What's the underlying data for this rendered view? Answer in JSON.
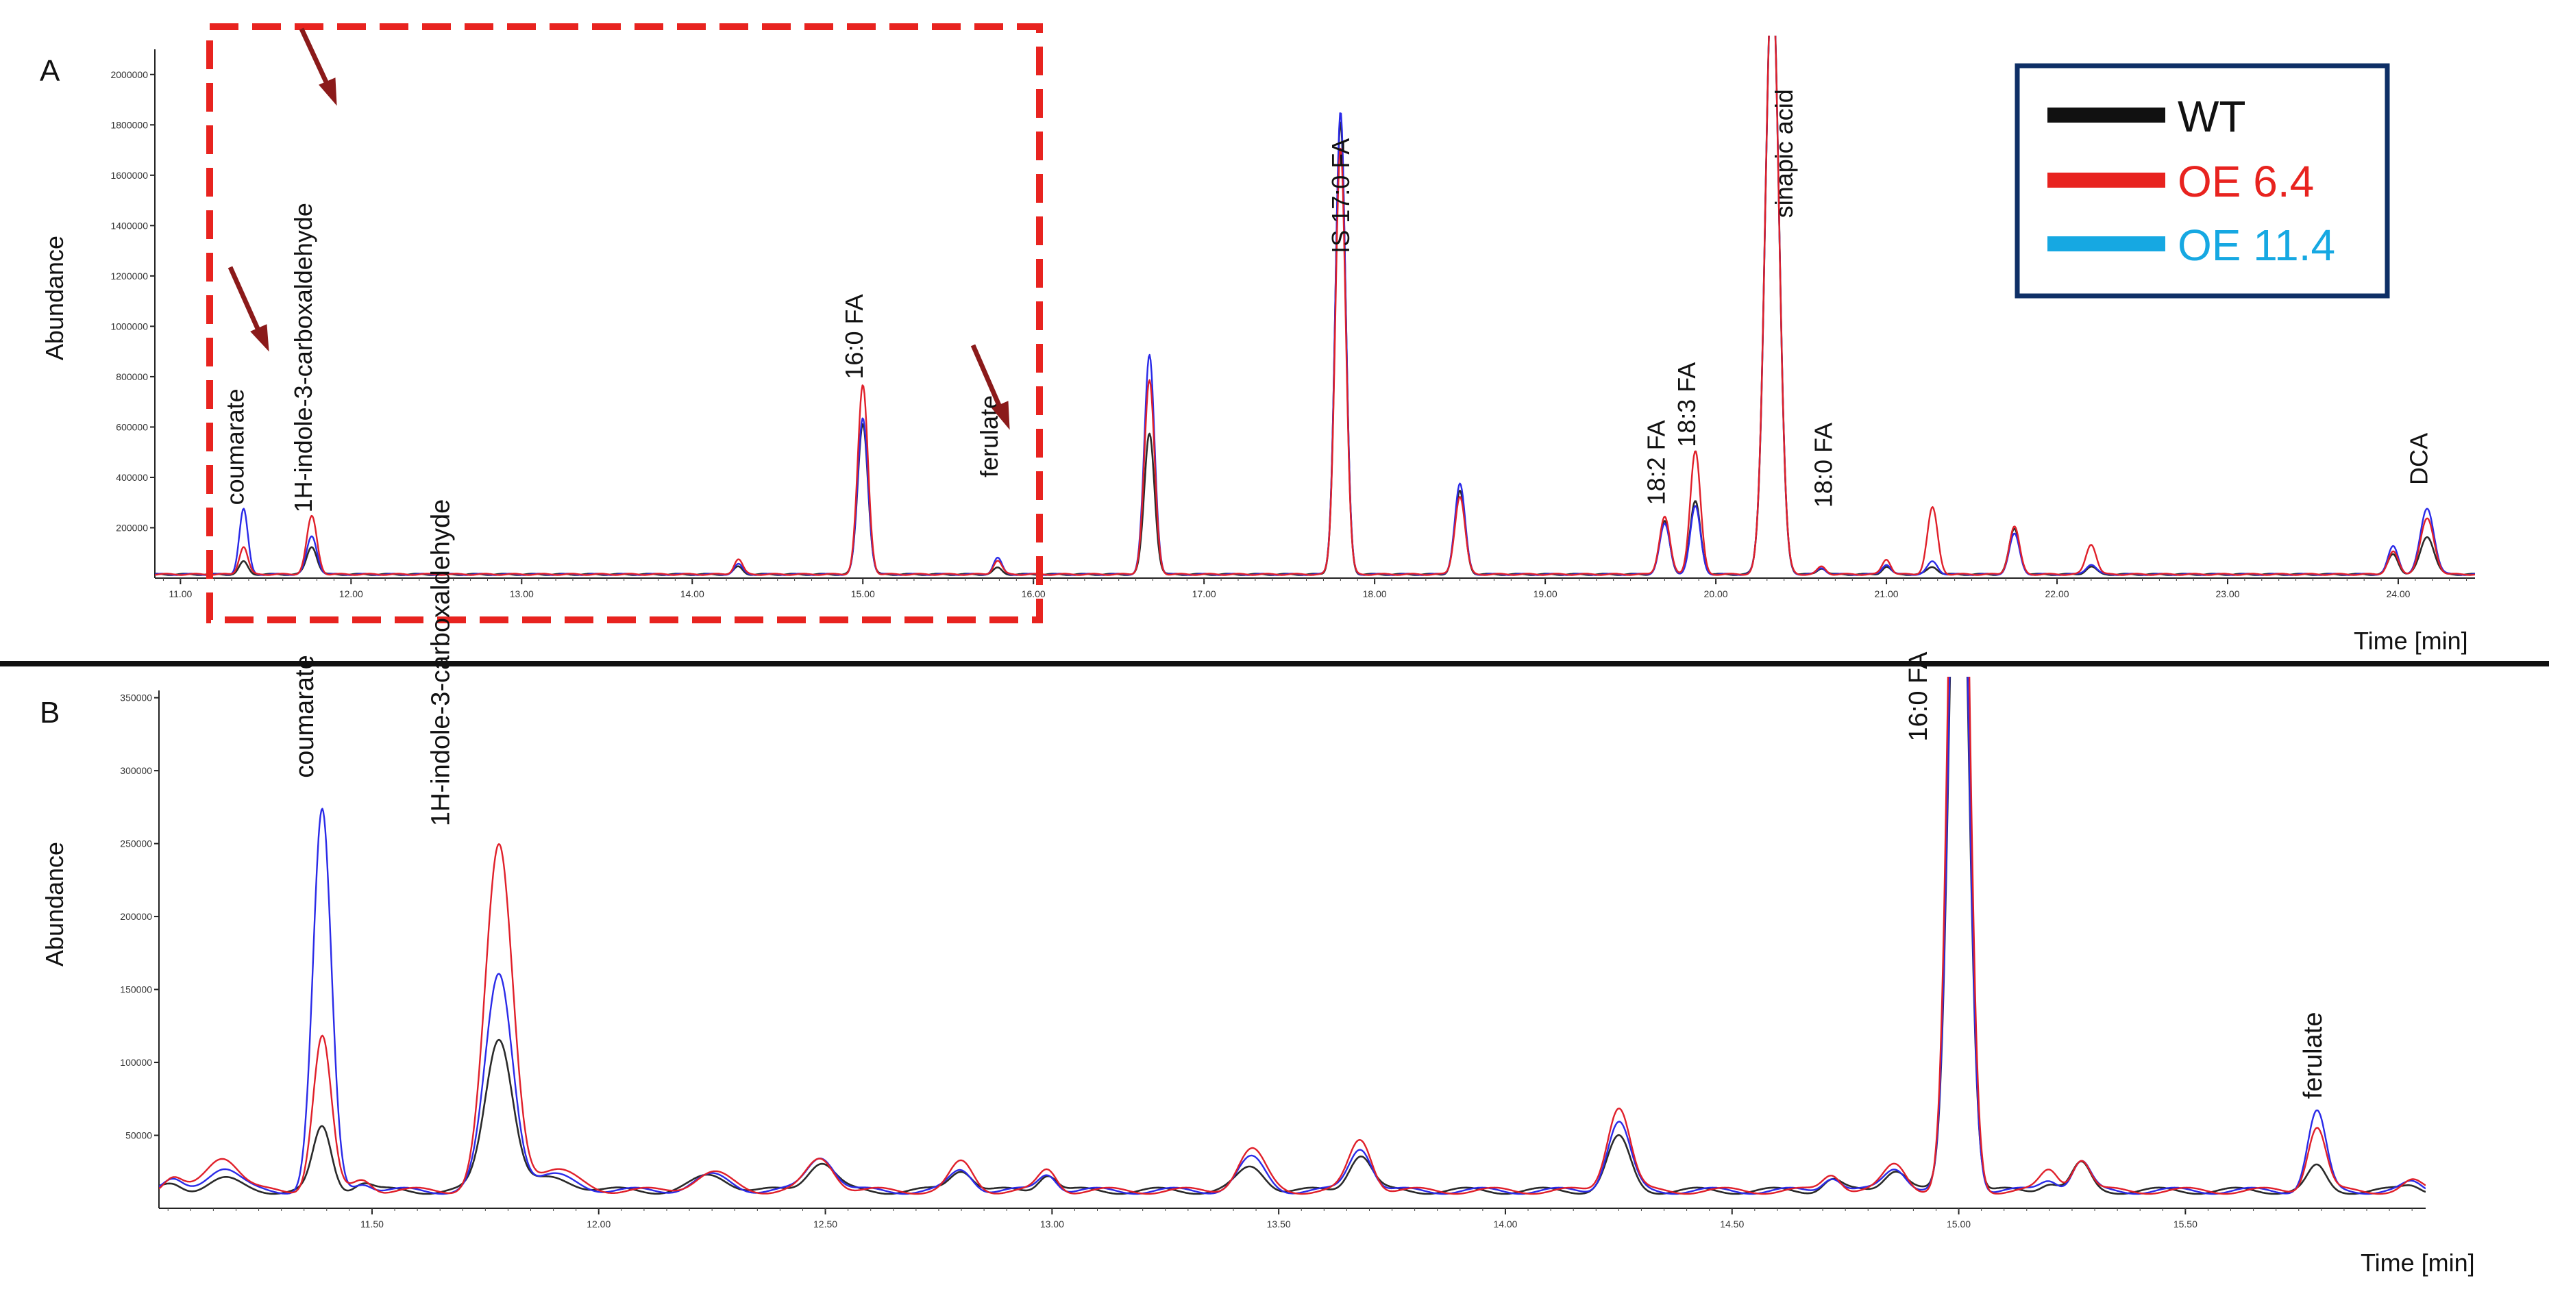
{
  "colors": {
    "WT": "#2a2a2a",
    "OE 6.4": "#e0202a",
    "OE 11.4": "#2a2ae8",
    "legend_OE 11.4": "#16a8e2",
    "box": "#e8231f",
    "arrow": "#8b1a1a",
    "legend_border": "#0e2f66"
  },
  "legend": [
    {
      "name": "WT",
      "color": "#111111"
    },
    {
      "name": "OE 6.4",
      "color": "#e8231f"
    },
    {
      "name": "OE 11.4",
      "color": "#16a8e2"
    }
  ],
  "chart_data": [
    {
      "panel_label": "A",
      "type": "line",
      "xlabel": "Time [min]",
      "ylabel": "Abundance",
      "xlim": [
        10.85,
        24.45
      ],
      "ylim": [
        0,
        2100000
      ],
      "x_ticks": [
        "11.00",
        "12.00",
        "13.00",
        "14.00",
        "15.00",
        "16.00",
        "17.00",
        "18.00",
        "19.00",
        "20.00",
        "21.00",
        "22.00",
        "23.00",
        "24.00"
      ],
      "x_tick_values": [
        11,
        12,
        13,
        14,
        15,
        16,
        17,
        18,
        19,
        20,
        21,
        22,
        23,
        24
      ],
      "y_ticks": [
        "200000",
        "400000",
        "600000",
        "800000",
        "1000000",
        "1200000",
        "1400000",
        "1600000",
        "1800000",
        "2000000"
      ],
      "y_tick_values": [
        200000,
        400000,
        600000,
        800000,
        1000000,
        1200000,
        1400000,
        1600000,
        1800000,
        2000000
      ],
      "grid": false,
      "baseline": 15000,
      "peaks": [
        {
          "rt": 11.37,
          "width": 0.025,
          "WT": 50000,
          "OE 6.4": 110000,
          "OE 11.4": 260000
        },
        {
          "rt": 11.77,
          "width": 0.03,
          "WT": 110000,
          "OE 6.4": 230000,
          "OE 11.4": 150000
        },
        {
          "rt": 14.27,
          "width": 0.025,
          "WT": 30000,
          "OE 6.4": 60000,
          "OE 11.4": 40000
        },
        {
          "rt": 15.0,
          "width": 0.03,
          "WT": 600000,
          "OE 6.4": 750000,
          "OE 11.4": 620000
        },
        {
          "rt": 15.79,
          "width": 0.025,
          "WT": 25000,
          "OE 6.4": 55000,
          "OE 11.4": 65000
        },
        {
          "rt": 16.68,
          "width": 0.03,
          "WT": 560000,
          "OE 6.4": 770000,
          "OE 11.4": 870000
        },
        {
          "rt": 17.8,
          "width": 0.03,
          "WT": 1800000,
          "OE 6.4": 1700000,
          "OE 11.4": 1840000
        },
        {
          "rt": 18.5,
          "width": 0.03,
          "WT": 330000,
          "OE 6.4": 310000,
          "OE 11.4": 360000
        },
        {
          "rt": 19.7,
          "width": 0.03,
          "WT": 210000,
          "OE 6.4": 230000,
          "OE 11.4": 200000
        },
        {
          "rt": 19.88,
          "width": 0.03,
          "WT": 290000,
          "OE 6.4": 490000,
          "OE 11.4": 270000
        },
        {
          "rt": 20.33,
          "width": 0.04,
          "WT": 2400000,
          "OE 6.4": 2400000,
          "OE 11.4": 2400000
        },
        {
          "rt": 20.62,
          "width": 0.025,
          "WT": 25000,
          "OE 6.4": 30000,
          "OE 11.4": 25000
        },
        {
          "rt": 21.0,
          "width": 0.025,
          "WT": 30000,
          "OE 6.4": 60000,
          "OE 11.4": 40000
        },
        {
          "rt": 21.27,
          "width": 0.03,
          "WT": 30000,
          "OE 6.4": 265000,
          "OE 11.4": 50000
        },
        {
          "rt": 21.75,
          "width": 0.03,
          "WT": 180000,
          "OE 6.4": 190000,
          "OE 11.4": 160000
        },
        {
          "rt": 22.2,
          "width": 0.03,
          "WT": 30000,
          "OE 6.4": 120000,
          "OE 11.4": 40000
        },
        {
          "rt": 23.97,
          "width": 0.03,
          "WT": 80000,
          "OE 6.4": 90000,
          "OE 11.4": 110000
        },
        {
          "rt": 24.17,
          "width": 0.04,
          "WT": 150000,
          "OE 6.4": 220000,
          "OE 11.4": 260000
        }
      ],
      "annotations": [
        {
          "text": "coumarate",
          "x": 11.37,
          "y": 290000
        },
        {
          "text": "1H-indole-3-carboxaldehyde",
          "x": 11.77,
          "y": 260000
        },
        {
          "text": "16:0 FA",
          "x": 15.0,
          "y": 790000
        },
        {
          "text": "ferulate",
          "x": 15.79,
          "y": 400000
        },
        {
          "text": "IS 17:0 FA",
          "x": 17.85,
          "y": 1290000
        },
        {
          "text": "18:2 FA",
          "x": 19.7,
          "y": 290000
        },
        {
          "text": "18:3 FA",
          "x": 19.88,
          "y": 520000
        },
        {
          "text": "sinapic acid",
          "x": 20.45,
          "y": 1430000
        },
        {
          "text": "18:0 FA",
          "x": 20.68,
          "y": 280000
        },
        {
          "text": "DCA",
          "x": 24.17,
          "y": 370000
        }
      ]
    },
    {
      "panel_label": "B",
      "type": "line",
      "xlabel": "Time [min]",
      "ylabel": "Abundance",
      "xlim": [
        11.03,
        16.03
      ],
      "ylim": [
        0,
        355000
      ],
      "x_ticks": [
        "11.50",
        "12.00",
        "12.50",
        "13.00",
        "13.50",
        "14.00",
        "14.50",
        "15.00",
        "15.50"
      ],
      "x_tick_values": [
        11.5,
        12.0,
        12.5,
        13.0,
        13.5,
        14.0,
        14.5,
        15.0,
        15.5
      ],
      "y_ticks": [
        "50000",
        "100000",
        "150000",
        "200000",
        "250000",
        "300000",
        "350000"
      ],
      "y_tick_values": [
        50000,
        100000,
        150000,
        200000,
        250000,
        300000,
        350000
      ],
      "grid": false,
      "baseline": 12000,
      "peaks": [
        {
          "rt": 11.06,
          "width": 0.02,
          "WT": 4000,
          "OE 6.4": 8000,
          "OE 11.4": 6000
        },
        {
          "rt": 11.17,
          "width": 0.035,
          "WT": 8000,
          "OE 6.4": 24000,
          "OE 11.4": 16000
        },
        {
          "rt": 11.39,
          "width": 0.02,
          "WT": 43000,
          "OE 6.4": 106000,
          "OE 11.4": 260000
        },
        {
          "rt": 11.48,
          "width": 0.02,
          "WT": 6000,
          "OE 6.4": 8000,
          "OE 11.4": 6000
        },
        {
          "rt": 11.78,
          "width": 0.03,
          "WT": 105000,
          "OE 6.4": 235000,
          "OE 11.4": 148000
        },
        {
          "rt": 11.9,
          "width": 0.05,
          "WT": 8000,
          "OE 6.4": 14000,
          "OE 11.4": 10000
        },
        {
          "rt": 12.25,
          "width": 0.04,
          "WT": 10000,
          "OE 6.4": 12000,
          "OE 11.4": 10000
        },
        {
          "rt": 12.49,
          "width": 0.03,
          "WT": 20000,
          "OE 6.4": 22000,
          "OE 11.4": 24000
        },
        {
          "rt": 12.8,
          "width": 0.025,
          "WT": 15000,
          "OE 6.4": 19000,
          "OE 11.4": 14000
        },
        {
          "rt": 12.99,
          "width": 0.02,
          "WT": 12000,
          "OE 6.4": 14000,
          "OE 11.4": 12000
        },
        {
          "rt": 13.44,
          "width": 0.03,
          "WT": 16000,
          "OE 6.4": 28000,
          "OE 11.4": 22000
        },
        {
          "rt": 13.68,
          "width": 0.025,
          "WT": 25000,
          "OE 6.4": 35000,
          "OE 11.4": 30000
        },
        {
          "rt": 14.25,
          "width": 0.025,
          "WT": 36000,
          "OE 6.4": 58000,
          "OE 11.4": 47000
        },
        {
          "rt": 14.72,
          "width": 0.02,
          "WT": 8000,
          "OE 6.4": 12000,
          "OE 11.4": 10000
        },
        {
          "rt": 14.86,
          "width": 0.025,
          "WT": 15000,
          "OE 6.4": 18000,
          "OE 11.4": 16000
        },
        {
          "rt": 15.0,
          "width": 0.02,
          "WT": 560000,
          "OE 6.4": 700000,
          "OE 11.4": 580000
        },
        {
          "rt": 15.2,
          "width": 0.02,
          "WT": 6000,
          "OE 6.4": 14000,
          "OE 11.4": 8000
        },
        {
          "rt": 15.27,
          "width": 0.02,
          "WT": 18000,
          "OE 6.4": 22000,
          "OE 11.4": 20000
        },
        {
          "rt": 15.79,
          "width": 0.02,
          "WT": 16000,
          "OE 6.4": 44000,
          "OE 11.4": 54000
        },
        {
          "rt": 16.0,
          "width": 0.02,
          "WT": 4000,
          "OE 6.4": 6000,
          "OE 11.4": 5000
        }
      ],
      "annotations": [
        {
          "text": "coumarate",
          "x": 11.37,
          "y": 295000
        },
        {
          "text": "1H-indole-3-carboxaldehyde",
          "x": 11.67,
          "y": 262000
        },
        {
          "text": "16:0 FA",
          "x": 14.93,
          "y": 320000
        },
        {
          "text": "ferulate",
          "x": 15.8,
          "y": 75000
        }
      ]
    }
  ]
}
